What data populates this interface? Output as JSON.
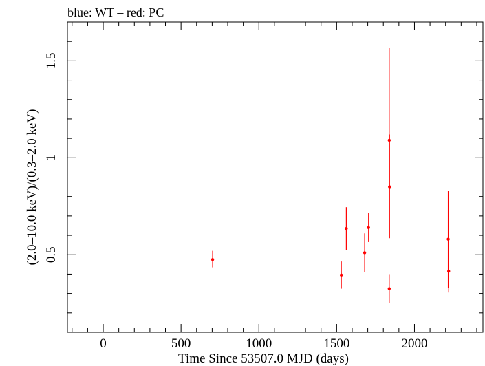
{
  "chart_data": {
    "type": "scatter",
    "title": "blue: WT – red: PC",
    "xlabel": "Time Since 53507.0 MJD (days)",
    "ylabel": "(2.0–10.0 keV)/(0.3–2.0 keV)",
    "xlim": [
      -230,
      2440
    ],
    "ylim": [
      0.1,
      1.7
    ],
    "x_ticks": [
      0,
      500,
      1000,
      1500,
      2000
    ],
    "x_tick_labels": [
      "0",
      "500",
      "1000",
      "1500",
      "2000"
    ],
    "y_ticks": [
      0.5,
      1.0,
      1.5
    ],
    "y_tick_labels": [
      "0.5",
      "1",
      "1.5"
    ],
    "grid": false,
    "series": [
      {
        "color": "#ff0000",
        "points": [
          {
            "x": 703,
            "y": 0.475,
            "yerr_low": 0.435,
            "yerr_high": 0.52
          },
          {
            "x": 1530,
            "y": 0.395,
            "yerr_low": 0.325,
            "yerr_high": 0.465
          },
          {
            "x": 1562,
            "y": 0.635,
            "yerr_low": 0.525,
            "yerr_high": 0.745
          },
          {
            "x": 1680,
            "y": 0.51,
            "yerr_low": 0.41,
            "yerr_high": 0.61
          },
          {
            "x": 1705,
            "y": 0.64,
            "yerr_low": 0.565,
            "yerr_high": 0.715
          },
          {
            "x": 1838,
            "y": 1.09,
            "yerr_low": 0.85,
            "yerr_high": 1.565
          },
          {
            "x": 1840,
            "y": 0.85,
            "yerr_low": 0.585,
            "yerr_high": 1.12
          },
          {
            "x": 1838,
            "y": 0.325,
            "yerr_low": 0.25,
            "yerr_high": 0.4
          },
          {
            "x": 2217,
            "y": 0.58,
            "yerr_low": 0.33,
            "yerr_high": 0.83
          },
          {
            "x": 2220,
            "y": 0.415,
            "yerr_low": 0.305,
            "yerr_high": 0.525
          }
        ]
      }
    ]
  }
}
